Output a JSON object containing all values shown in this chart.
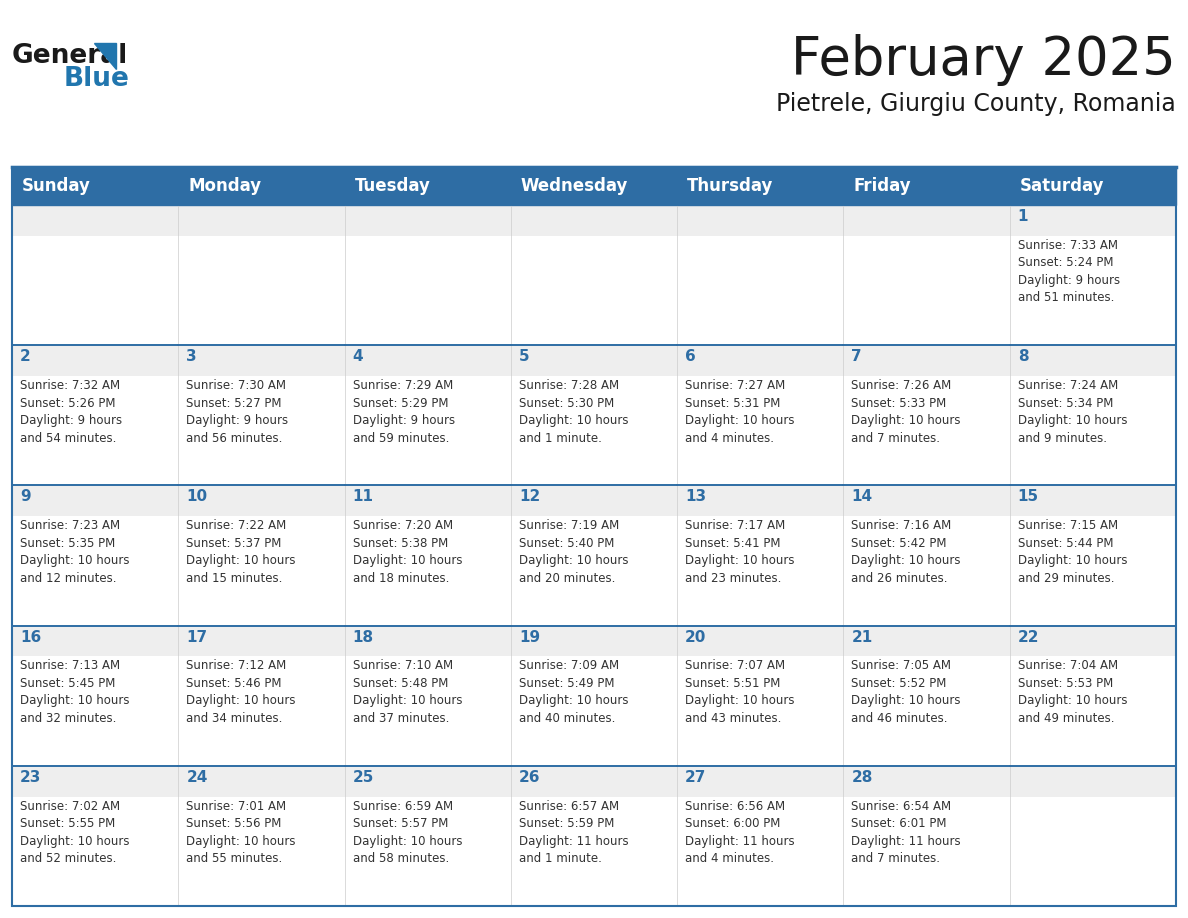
{
  "title": "February 2025",
  "subtitle": "Pietrele, Giurgiu County, Romania",
  "header_bg": "#2E6DA4",
  "header_text_color": "#FFFFFF",
  "cell_bg": "#FFFFFF",
  "cell_top_stripe": "#EEEEEE",
  "border_color": "#2E6DA4",
  "grid_line_color": "#AAAAAA",
  "days_of_week": [
    "Sunday",
    "Monday",
    "Tuesday",
    "Wednesday",
    "Thursday",
    "Friday",
    "Saturday"
  ],
  "weeks": [
    [
      {
        "day": "",
        "info": ""
      },
      {
        "day": "",
        "info": ""
      },
      {
        "day": "",
        "info": ""
      },
      {
        "day": "",
        "info": ""
      },
      {
        "day": "",
        "info": ""
      },
      {
        "day": "",
        "info": ""
      },
      {
        "day": "1",
        "info": "Sunrise: 7:33 AM\nSunset: 5:24 PM\nDaylight: 9 hours\nand 51 minutes."
      }
    ],
    [
      {
        "day": "2",
        "info": "Sunrise: 7:32 AM\nSunset: 5:26 PM\nDaylight: 9 hours\nand 54 minutes."
      },
      {
        "day": "3",
        "info": "Sunrise: 7:30 AM\nSunset: 5:27 PM\nDaylight: 9 hours\nand 56 minutes."
      },
      {
        "day": "4",
        "info": "Sunrise: 7:29 AM\nSunset: 5:29 PM\nDaylight: 9 hours\nand 59 minutes."
      },
      {
        "day": "5",
        "info": "Sunrise: 7:28 AM\nSunset: 5:30 PM\nDaylight: 10 hours\nand 1 minute."
      },
      {
        "day": "6",
        "info": "Sunrise: 7:27 AM\nSunset: 5:31 PM\nDaylight: 10 hours\nand 4 minutes."
      },
      {
        "day": "7",
        "info": "Sunrise: 7:26 AM\nSunset: 5:33 PM\nDaylight: 10 hours\nand 7 minutes."
      },
      {
        "day": "8",
        "info": "Sunrise: 7:24 AM\nSunset: 5:34 PM\nDaylight: 10 hours\nand 9 minutes."
      }
    ],
    [
      {
        "day": "9",
        "info": "Sunrise: 7:23 AM\nSunset: 5:35 PM\nDaylight: 10 hours\nand 12 minutes."
      },
      {
        "day": "10",
        "info": "Sunrise: 7:22 AM\nSunset: 5:37 PM\nDaylight: 10 hours\nand 15 minutes."
      },
      {
        "day": "11",
        "info": "Sunrise: 7:20 AM\nSunset: 5:38 PM\nDaylight: 10 hours\nand 18 minutes."
      },
      {
        "day": "12",
        "info": "Sunrise: 7:19 AM\nSunset: 5:40 PM\nDaylight: 10 hours\nand 20 minutes."
      },
      {
        "day": "13",
        "info": "Sunrise: 7:17 AM\nSunset: 5:41 PM\nDaylight: 10 hours\nand 23 minutes."
      },
      {
        "day": "14",
        "info": "Sunrise: 7:16 AM\nSunset: 5:42 PM\nDaylight: 10 hours\nand 26 minutes."
      },
      {
        "day": "15",
        "info": "Sunrise: 7:15 AM\nSunset: 5:44 PM\nDaylight: 10 hours\nand 29 minutes."
      }
    ],
    [
      {
        "day": "16",
        "info": "Sunrise: 7:13 AM\nSunset: 5:45 PM\nDaylight: 10 hours\nand 32 minutes."
      },
      {
        "day": "17",
        "info": "Sunrise: 7:12 AM\nSunset: 5:46 PM\nDaylight: 10 hours\nand 34 minutes."
      },
      {
        "day": "18",
        "info": "Sunrise: 7:10 AM\nSunset: 5:48 PM\nDaylight: 10 hours\nand 37 minutes."
      },
      {
        "day": "19",
        "info": "Sunrise: 7:09 AM\nSunset: 5:49 PM\nDaylight: 10 hours\nand 40 minutes."
      },
      {
        "day": "20",
        "info": "Sunrise: 7:07 AM\nSunset: 5:51 PM\nDaylight: 10 hours\nand 43 minutes."
      },
      {
        "day": "21",
        "info": "Sunrise: 7:05 AM\nSunset: 5:52 PM\nDaylight: 10 hours\nand 46 minutes."
      },
      {
        "day": "22",
        "info": "Sunrise: 7:04 AM\nSunset: 5:53 PM\nDaylight: 10 hours\nand 49 minutes."
      }
    ],
    [
      {
        "day": "23",
        "info": "Sunrise: 7:02 AM\nSunset: 5:55 PM\nDaylight: 10 hours\nand 52 minutes."
      },
      {
        "day": "24",
        "info": "Sunrise: 7:01 AM\nSunset: 5:56 PM\nDaylight: 10 hours\nand 55 minutes."
      },
      {
        "day": "25",
        "info": "Sunrise: 6:59 AM\nSunset: 5:57 PM\nDaylight: 10 hours\nand 58 minutes."
      },
      {
        "day": "26",
        "info": "Sunrise: 6:57 AM\nSunset: 5:59 PM\nDaylight: 11 hours\nand 1 minute."
      },
      {
        "day": "27",
        "info": "Sunrise: 6:56 AM\nSunset: 6:00 PM\nDaylight: 11 hours\nand 4 minutes."
      },
      {
        "day": "28",
        "info": "Sunrise: 6:54 AM\nSunset: 6:01 PM\nDaylight: 11 hours\nand 7 minutes."
      },
      {
        "day": "",
        "info": ""
      }
    ]
  ],
  "logo_color_general": "#1a1a1a",
  "logo_color_blue": "#2176AE",
  "title_fontsize": 38,
  "subtitle_fontsize": 17,
  "header_fontsize": 12,
  "day_num_fontsize": 11,
  "info_fontsize": 8.5
}
